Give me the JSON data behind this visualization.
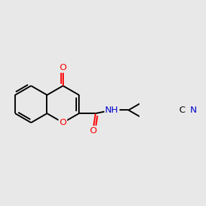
{
  "background_color": "#e8e8e8",
  "bond_color": "#000000",
  "bond_width": 1.5,
  "dbo": 0.05,
  "font_size": 9.5,
  "atom_colors": {
    "O": "#ff0000",
    "N": "#0000cd",
    "C": "#000000"
  }
}
